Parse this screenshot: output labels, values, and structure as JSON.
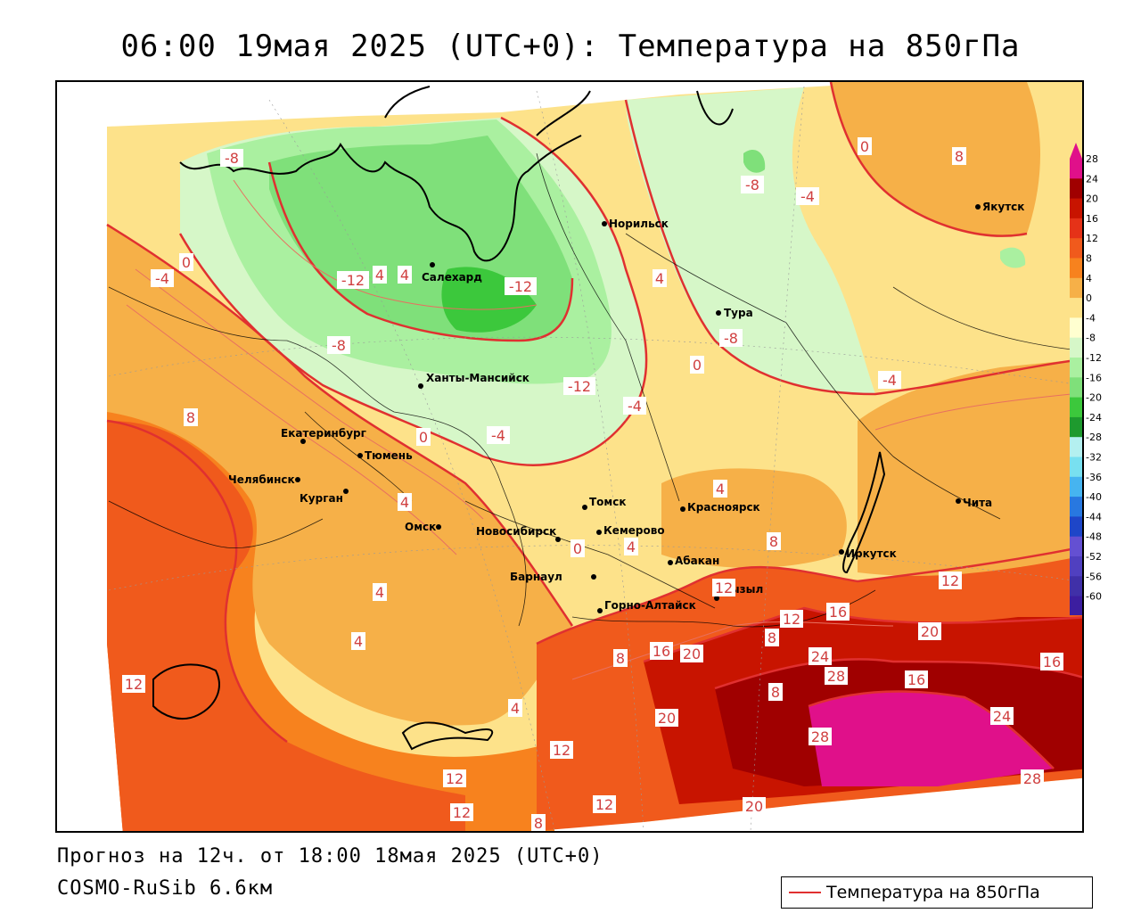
{
  "title": "06:00 19мая 2025 (UTC+0): Температура на 850гПа",
  "footer": {
    "forecast": "Прогноз на 12ч. от 18:00 18мая 2025 (UTC+0)",
    "model": "COSMO-RuSib 6.6км"
  },
  "legend": {
    "label": "Температура на 850гПа",
    "line_color": "#e03030"
  },
  "map": {
    "cities": [
      {
        "name": "Норильск"
      },
      {
        "name": "Якутск"
      },
      {
        "name": "Салехард"
      },
      {
        "name": "Тура"
      },
      {
        "name": "Ханты-Мансийск"
      },
      {
        "name": "Екатеринбург"
      },
      {
        "name": "Тюмень"
      },
      {
        "name": "Челябинск"
      },
      {
        "name": "Курган"
      },
      {
        "name": "Омск"
      },
      {
        "name": "Новосибирск"
      },
      {
        "name": "Томск"
      },
      {
        "name": "Кемерово"
      },
      {
        "name": "Красноярск"
      },
      {
        "name": "Барнаул"
      },
      {
        "name": "Абакан"
      },
      {
        "name": "Горно-Алтайск"
      },
      {
        "name": "Кызыл"
      },
      {
        "name": "Иркутск"
      },
      {
        "name": "Чита"
      }
    ],
    "isotherm_labels": [
      "-8",
      "-8",
      "-4",
      "0",
      "4",
      "4",
      "-12",
      "-12",
      "-12",
      "-4",
      "4",
      "0",
      "-8",
      "-4",
      "-8",
      "0",
      "-4",
      "8",
      "0",
      "-4",
      "4",
      "0",
      "4",
      "4",
      "4",
      "4",
      "4",
      "8",
      "12",
      "8",
      "12",
      "12",
      "16",
      "8",
      "8",
      "16",
      "20",
      "20",
      "24",
      "28",
      "16",
      "8",
      "12",
      "20",
      "24",
      "12",
      "28",
      "12",
      "16",
      "20",
      "12",
      "8",
      "12",
      "28"
    ]
  },
  "colorbar": {
    "labels": [
      "28",
      "24",
      "20",
      "16",
      "12",
      "8",
      "4",
      "0",
      "-4",
      "-8",
      "-12",
      "-16",
      "-20",
      "-24",
      "-28",
      "-32",
      "-36",
      "-40",
      "-44",
      "-48",
      "-52",
      "-56",
      "-60"
    ],
    "colors": [
      "#e0108a",
      "#a00000",
      "#c81400",
      "#e53218",
      "#f05a1c",
      "#f7821e",
      "#f6b048",
      "#fde28a",
      "#ffffd0",
      "#d6f7c8",
      "#aaf0a0",
      "#7fe07a",
      "#3cc83c",
      "#1e9a2e",
      "#b4f0f0",
      "#78e0f0",
      "#46b4f0",
      "#2878e0",
      "#1e46c8",
      "#6450d2",
      "#5040c0",
      "#4030a8",
      "#3c1ea0"
    ]
  }
}
